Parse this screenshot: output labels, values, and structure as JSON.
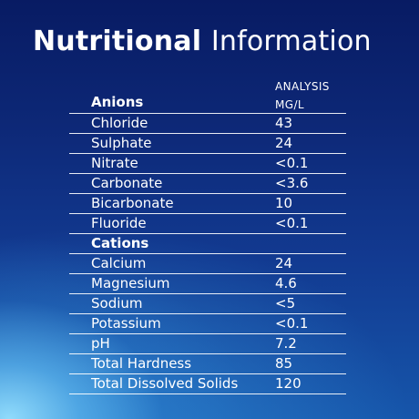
{
  "title": {
    "bold": "Nutritional",
    "light": "Information"
  },
  "column_header": {
    "line1": "ANALYSIS",
    "line2": "MG/L"
  },
  "anions": {
    "heading": "Anions",
    "rows": [
      {
        "label": "Chloride",
        "value": "43"
      },
      {
        "label": "Sulphate",
        "value": "24"
      },
      {
        "label": "Nitrate",
        "value": "<0.1"
      },
      {
        "label": "Carbonate",
        "value": "<3.6"
      },
      {
        "label": "Bicarbonate",
        "value": "10"
      },
      {
        "label": "Fluoride",
        "value": "<0.1"
      }
    ]
  },
  "cations": {
    "heading": "Cations",
    "rows": [
      {
        "label": "Calcium",
        "value": "24"
      },
      {
        "label": "Magnesium",
        "value": "4.6"
      },
      {
        "label": "Sodium",
        "value": "<5"
      },
      {
        "label": "Potassium",
        "value": "<0.1"
      },
      {
        "label": "pH",
        "value": "7.2"
      },
      {
        "label": "Total Hardness",
        "value": "85"
      },
      {
        "label": "Total Dissolved Solids",
        "value": "120"
      }
    ]
  },
  "colors": {
    "background_top": "#081b63",
    "background_bottom": "#1656ab",
    "glow": "#96e1ff",
    "text": "#ffffff"
  }
}
